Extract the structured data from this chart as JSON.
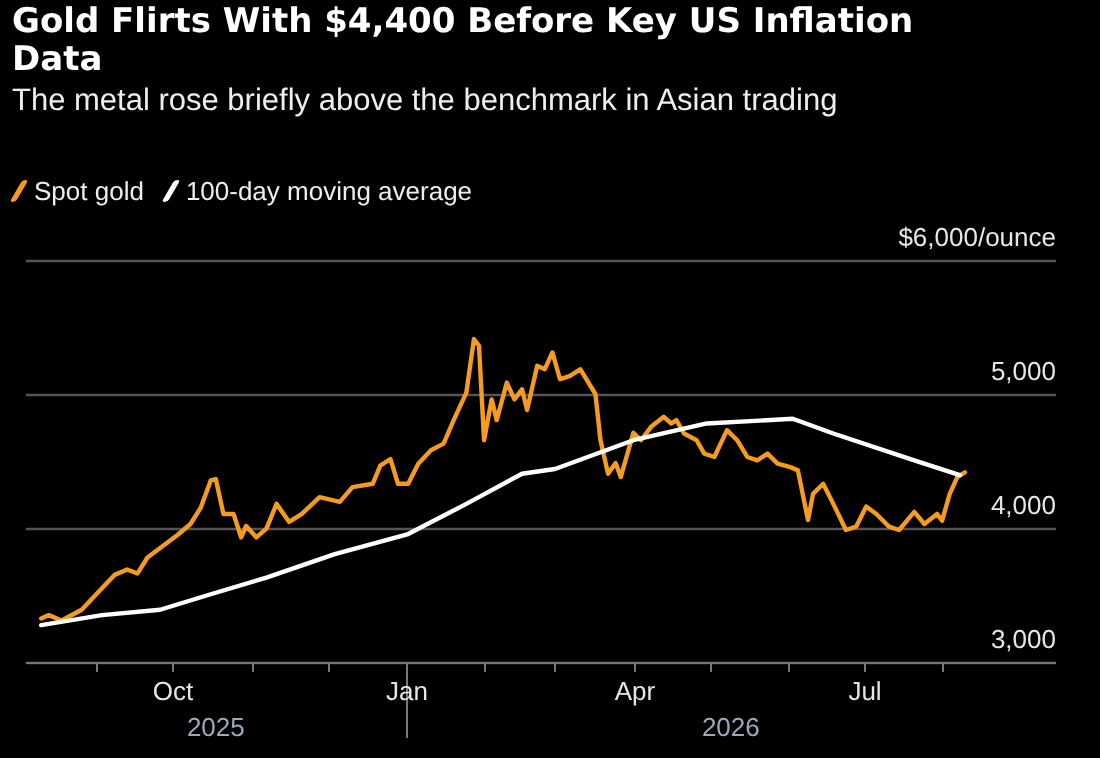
{
  "chart_data": {
    "type": "line",
    "title": "Gold Flirts With $4,400 Before Key US Inflation Data",
    "subtitle": "The metal rose briefly above the benchmark in Asian trading",
    "series": [
      {
        "name": "Spot gold",
        "color": "#f59c1e",
        "x": [
          "2025-08-10",
          "2025-08-13",
          "2025-08-18",
          "2025-08-26",
          "2025-09-03",
          "2025-09-08",
          "2025-09-13",
          "2025-09-17",
          "2025-09-21",
          "2025-09-26",
          "2025-10-03",
          "2025-10-08",
          "2025-10-12",
          "2025-10-16",
          "2025-10-18",
          "2025-10-21",
          "2025-10-25",
          "2025-10-28",
          "2025-10-30",
          "2025-11-03",
          "2025-11-07",
          "2025-11-11",
          "2025-11-16",
          "2025-11-21",
          "2025-11-28",
          "2025-12-06",
          "2025-12-11",
          "2025-12-19",
          "2025-12-22",
          "2025-12-26",
          "2025-12-29",
          "2026-01-02",
          "2026-01-06",
          "2026-01-11",
          "2026-01-16",
          "2026-01-20",
          "2026-01-25",
          "2026-01-28",
          "2026-01-30",
          "2026-02-01",
          "2026-02-04",
          "2026-02-06",
          "2026-02-10",
          "2026-02-13",
          "2026-02-16",
          "2026-02-18",
          "2026-02-22",
          "2026-02-25",
          "2026-02-28",
          "2026-03-03",
          "2026-03-07",
          "2026-03-11",
          "2026-03-17",
          "2026-03-19",
          "2026-03-22",
          "2026-03-25",
          "2026-03-27",
          "2026-04-01",
          "2026-04-04",
          "2026-04-08",
          "2026-04-13",
          "2026-04-16",
          "2026-04-18",
          "2026-04-21",
          "2026-04-26",
          "2026-04-29",
          "2026-05-03",
          "2026-05-08",
          "2026-05-12",
          "2026-05-16",
          "2026-05-20",
          "2026-05-24",
          "2026-05-28",
          "2026-06-02",
          "2026-06-05",
          "2026-06-09",
          "2026-06-11",
          "2026-06-15",
          "2026-06-19",
          "2026-06-24",
          "2026-06-28",
          "2026-07-02",
          "2026-07-06",
          "2026-07-11",
          "2026-07-15",
          "2026-07-21",
          "2026-07-25",
          "2026-07-30",
          "2026-08-01",
          "2026-08-04",
          "2026-08-07",
          "2026-08-10"
        ],
        "values": [
          3325,
          3350,
          3310,
          3390,
          3550,
          3650,
          3690,
          3660,
          3780,
          3850,
          3950,
          4030,
          4150,
          4355,
          4365,
          4105,
          4105,
          3930,
          4015,
          3930,
          3995,
          4180,
          4045,
          4105,
          4230,
          4195,
          4305,
          4330,
          4465,
          4515,
          4330,
          4330,
          4480,
          4580,
          4630,
          4805,
          5010,
          5410,
          5360,
          4655,
          4960,
          4805,
          5085,
          4960,
          5035,
          4880,
          5210,
          5185,
          5310,
          5110,
          5135,
          5185,
          5000,
          4655,
          4405,
          4485,
          4380,
          4710,
          4655,
          4755,
          4830,
          4780,
          4805,
          4705,
          4655,
          4555,
          4530,
          4730,
          4655,
          4530,
          4505,
          4555,
          4480,
          4455,
          4430,
          4060,
          4255,
          4330,
          4180,
          3985,
          4010,
          4160,
          4105,
          4010,
          3985,
          4120,
          4030,
          4105,
          4055,
          4255,
          4380,
          4415
        ]
      },
      {
        "name": "100-day moving average",
        "color": "#ffffff",
        "x": [
          "2025-08-10",
          "2025-09-03",
          "2025-09-26",
          "2025-10-15",
          "2025-11-07",
          "2025-12-04",
          "2026-01-02",
          "2026-01-25",
          "2026-02-16",
          "2026-03-01",
          "2026-04-01",
          "2026-04-30",
          "2026-06-03",
          "2026-06-19",
          "2026-07-21",
          "2026-08-08"
        ],
        "values": [
          3275,
          3350,
          3390,
          3500,
          3630,
          3805,
          3955,
          4180,
          4405,
          4440,
          4655,
          4780,
          4815,
          4705,
          4505,
          4395
        ]
      }
    ],
    "xlim": [
      "2025-08-04",
      "2026-09-15"
    ],
    "xticks": [
      {
        "value": "2025-09-01",
        "label": null
      },
      {
        "value": "2025-10-01",
        "label": "Oct"
      },
      {
        "value": "2025-11-01",
        "label": null
      },
      {
        "value": "2025-12-01",
        "label": null
      },
      {
        "value": "2026-01-01",
        "label": "Jan"
      },
      {
        "value": "2026-02-01",
        "label": null
      },
      {
        "value": "2026-03-01",
        "label": null
      },
      {
        "value": "2026-04-01",
        "label": "Apr"
      },
      {
        "value": "2026-05-01",
        "label": null
      },
      {
        "value": "2026-06-01",
        "label": null
      },
      {
        "value": "2026-07-01",
        "label": "Jul"
      },
      {
        "value": "2026-08-01",
        "label": null
      }
    ],
    "ylim": [
      3000,
      6000
    ],
    "yticks": [
      {
        "value": 3000,
        "label": "3,000"
      },
      {
        "value": 4000,
        "label": "4,000"
      },
      {
        "value": 5000,
        "label": "5,000"
      },
      {
        "value": 6000,
        "label": "$6,000/ounce"
      }
    ],
    "annotations": [
      "2025",
      "2026"
    ],
    "grid": "y",
    "legend": "top left",
    "marker": "none",
    "line_style": "solid"
  }
}
